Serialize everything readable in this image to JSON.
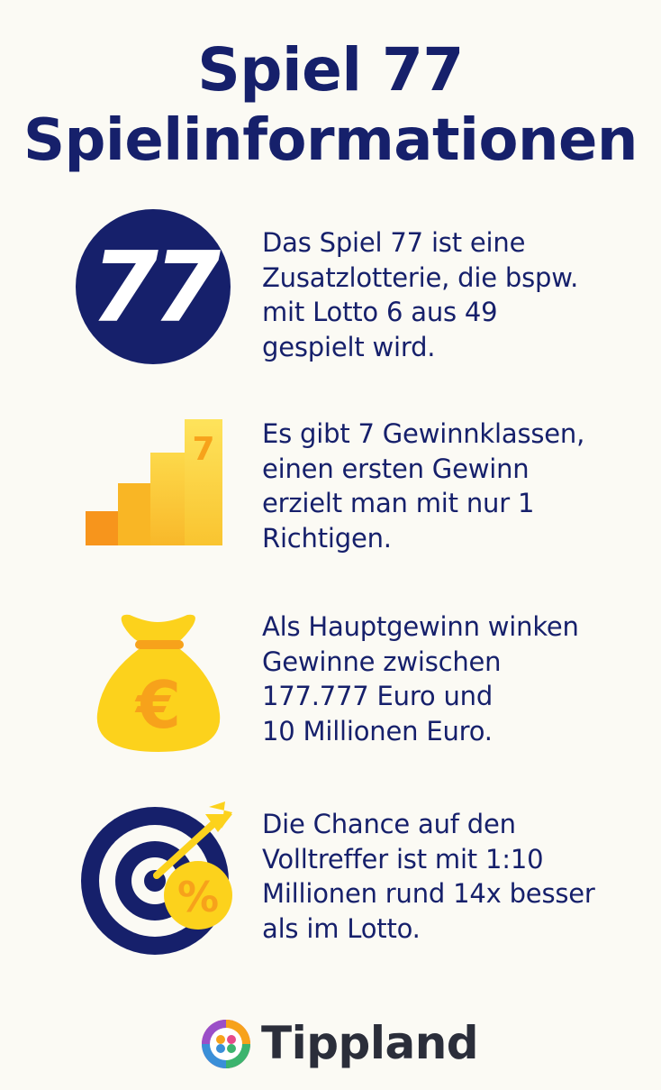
{
  "title": {
    "line1": "Spiel 77",
    "line2": "Spielinformationen"
  },
  "items": [
    {
      "icon": "number-77-circle-icon",
      "icon_text": "77",
      "lines": [
        "Das Spiel 77 ist eine",
        "Zusatzlotterie, die bspw.",
        "mit Lotto 6 aus 49",
        "gespielt wird."
      ]
    },
    {
      "icon": "bar-steps-icon",
      "icon_text": "7",
      "lines": [
        "Es gibt 7 Gewinnklassen,",
        "einen ersten Gewinn",
        "erzielt man mit nur 1",
        "Richtigen."
      ]
    },
    {
      "icon": "money-bag-euro-icon",
      "icon_text": "€",
      "lines": [
        "Als Hauptgewinn winken",
        "Gewinne zwischen",
        "177.777 Euro und",
        "10 Millionen Euro."
      ]
    },
    {
      "icon": "target-dart-percent-icon",
      "icon_text": "%",
      "lines": [
        "Die Chance auf den",
        "Volltreffer ist mit 1:10",
        "Millionen rund 14x besser",
        "als im Lotto."
      ]
    }
  ],
  "brand": {
    "name": "Tippland",
    "icon": "clover-logo-icon"
  },
  "colors": {
    "navy": "#16206b",
    "yellow": "#fcd21c",
    "orange": "#f7a21b",
    "background": "#fbfaf4"
  }
}
